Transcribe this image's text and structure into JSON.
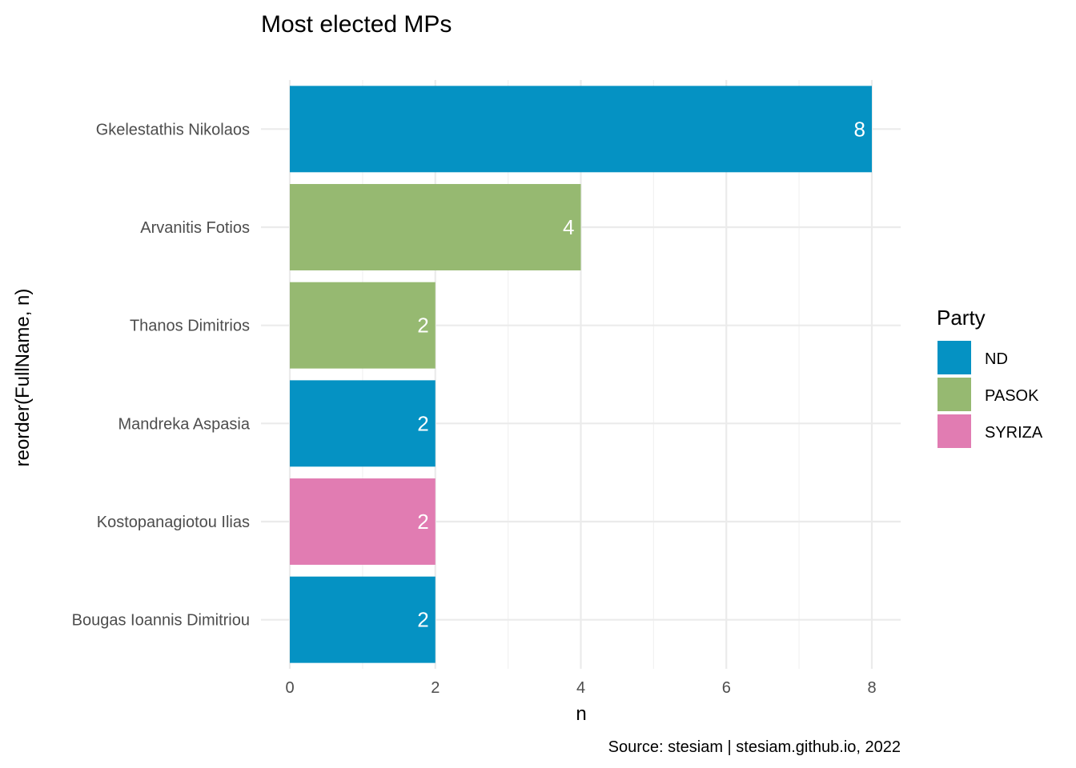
{
  "chart_data": {
    "type": "bar",
    "orientation": "horizontal",
    "title": "Most elected MPs",
    "xlabel": "n",
    "ylabel": "reorder(FullName, n)",
    "caption": "Source: stesiam | stesiam.github.io, 2022",
    "xlim": [
      0,
      8.4
    ],
    "xticks": [
      "0",
      "2",
      "4",
      "6",
      "8"
    ],
    "grid": true,
    "categories": [
      "Gkelestathis Nikolaos",
      "Arvanitis Fotios",
      "Thanos Dimitrios",
      "Mandreka Aspasia",
      "Kostopanagiotou Ilias",
      "Bougas Ioannis Dimitriou"
    ],
    "values": [
      8,
      4,
      2,
      2,
      2,
      2
    ],
    "value_labels": [
      "8",
      "4",
      "2",
      "2",
      "2",
      "2"
    ],
    "party": [
      "ND",
      "PASOK",
      "PASOK",
      "ND",
      "SYRIZA",
      "ND"
    ],
    "legend": {
      "title": "Party",
      "placement": "right",
      "entries": [
        {
          "name": "ND",
          "color": "#0592C3"
        },
        {
          "name": "PASOK",
          "color": "#96B971"
        },
        {
          "name": "SYRIZA",
          "color": "#E17CB2"
        }
      ]
    }
  }
}
